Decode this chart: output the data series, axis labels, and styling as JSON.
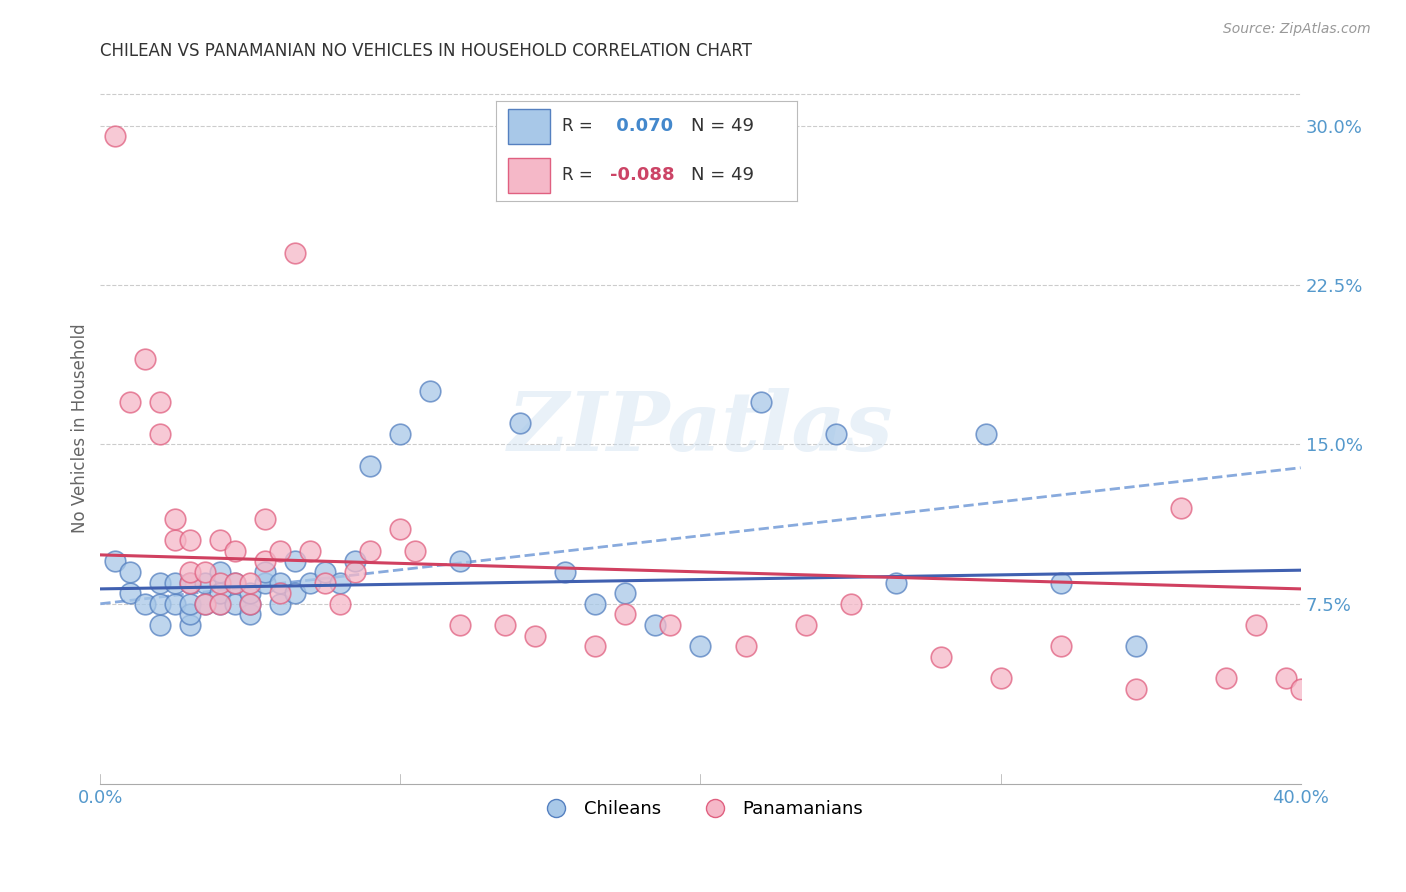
{
  "title": "CHILEAN VS PANAMANIAN NO VEHICLES IN HOUSEHOLD CORRELATION CHART",
  "source": "Source: ZipAtlas.com",
  "ylabel": "No Vehicles in Household",
  "ytick_labels": [
    "7.5%",
    "15.0%",
    "22.5%",
    "30.0%"
  ],
  "ytick_values": [
    0.075,
    0.15,
    0.225,
    0.3
  ],
  "xlim": [
    0.0,
    0.4
  ],
  "ylim": [
    -0.01,
    0.325
  ],
  "chilean_color": "#a8c8e8",
  "panamanian_color": "#f5b8c8",
  "chilean_edge_color": "#5580c0",
  "panamanian_edge_color": "#e06080",
  "chilean_line_color": "#4060b0",
  "panamanian_line_color": "#d04060",
  "chilean_dashed_color": "#88aadd",
  "N": 49,
  "watermark_text": "ZIPatlas",
  "background_color": "#ffffff",
  "grid_color": "#cccccc",
  "title_color": "#333333",
  "tick_label_color": "#5599cc",
  "legend_label_chilean": "Chileans",
  "legend_label_panamanian": "Panamanians",
  "chilean_R": 0.07,
  "panamanian_R": -0.088,
  "chilean_x": [
    0.005,
    0.01,
    0.01,
    0.015,
    0.02,
    0.02,
    0.02,
    0.025,
    0.025,
    0.03,
    0.03,
    0.03,
    0.03,
    0.035,
    0.035,
    0.04,
    0.04,
    0.04,
    0.045,
    0.045,
    0.05,
    0.05,
    0.05,
    0.055,
    0.055,
    0.06,
    0.06,
    0.065,
    0.065,
    0.07,
    0.075,
    0.08,
    0.085,
    0.09,
    0.1,
    0.11,
    0.12,
    0.14,
    0.155,
    0.165,
    0.175,
    0.185,
    0.2,
    0.22,
    0.245,
    0.265,
    0.295,
    0.32,
    0.345
  ],
  "chilean_y": [
    0.095,
    0.08,
    0.09,
    0.075,
    0.065,
    0.075,
    0.085,
    0.075,
    0.085,
    0.065,
    0.07,
    0.075,
    0.085,
    0.075,
    0.085,
    0.075,
    0.08,
    0.09,
    0.075,
    0.085,
    0.07,
    0.075,
    0.08,
    0.085,
    0.09,
    0.075,
    0.085,
    0.08,
    0.095,
    0.085,
    0.09,
    0.085,
    0.095,
    0.14,
    0.155,
    0.175,
    0.095,
    0.16,
    0.09,
    0.075,
    0.08,
    0.065,
    0.055,
    0.17,
    0.155,
    0.085,
    0.155,
    0.085,
    0.055
  ],
  "panamanian_x": [
    0.005,
    0.01,
    0.015,
    0.02,
    0.02,
    0.025,
    0.025,
    0.03,
    0.03,
    0.03,
    0.035,
    0.035,
    0.04,
    0.04,
    0.04,
    0.045,
    0.045,
    0.05,
    0.05,
    0.055,
    0.055,
    0.06,
    0.06,
    0.065,
    0.07,
    0.075,
    0.08,
    0.085,
    0.09,
    0.1,
    0.105,
    0.12,
    0.135,
    0.145,
    0.165,
    0.175,
    0.19,
    0.215,
    0.235,
    0.25,
    0.28,
    0.3,
    0.32,
    0.345,
    0.36,
    0.375,
    0.385,
    0.395,
    0.4
  ],
  "panamanian_y": [
    0.295,
    0.17,
    0.19,
    0.155,
    0.17,
    0.105,
    0.115,
    0.085,
    0.09,
    0.105,
    0.075,
    0.09,
    0.075,
    0.085,
    0.105,
    0.085,
    0.1,
    0.075,
    0.085,
    0.095,
    0.115,
    0.08,
    0.1,
    0.24,
    0.1,
    0.085,
    0.075,
    0.09,
    0.1,
    0.11,
    0.1,
    0.065,
    0.065,
    0.06,
    0.055,
    0.07,
    0.065,
    0.055,
    0.065,
    0.075,
    0.05,
    0.04,
    0.055,
    0.035,
    0.12,
    0.04,
    0.065,
    0.04,
    0.035
  ]
}
